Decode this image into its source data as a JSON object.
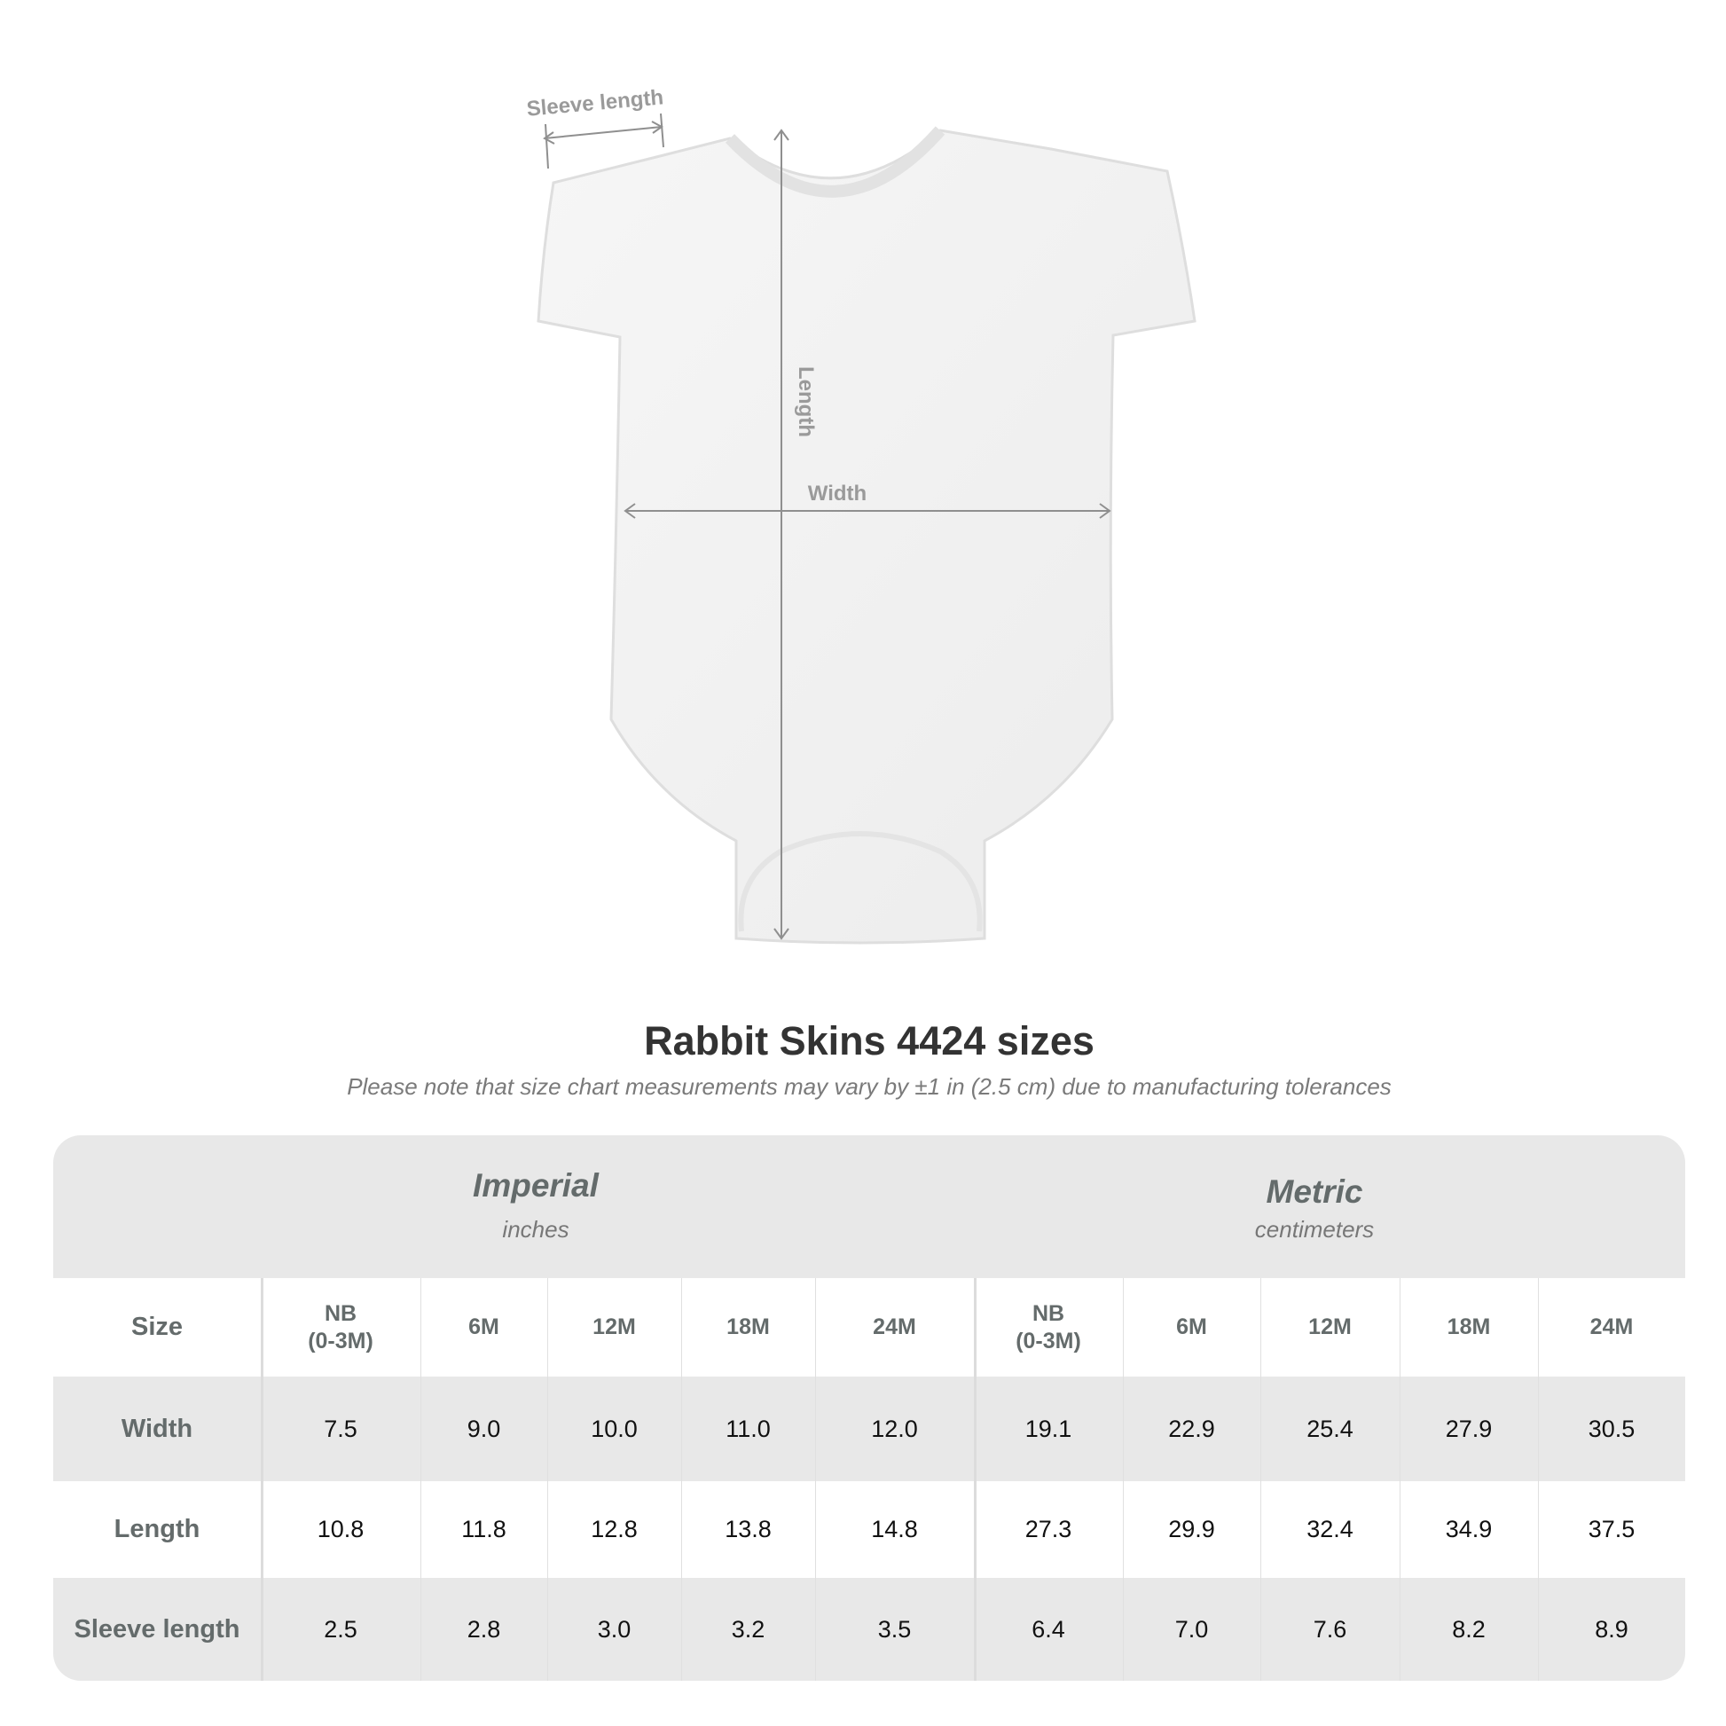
{
  "diagram": {
    "labels": {
      "sleeve": "Sleeve length",
      "length": "Length",
      "width": "Width"
    }
  },
  "title": "Rabbit Skins 4424 sizes",
  "subtitle": "Please note that size chart measurements may vary by ±1 in (2.5 cm) due to manufacturing tolerances",
  "table": {
    "imperial": {
      "title": "Imperial",
      "unit": "inches"
    },
    "metric": {
      "title": "Metric",
      "unit": "centimeters"
    },
    "size_label": "Size",
    "sizes": [
      "NB\n(0-3M)",
      "6M",
      "12M",
      "18M",
      "24M",
      "NB\n(0-3M)",
      "6M",
      "12M",
      "18M",
      "24M"
    ],
    "rows": [
      {
        "label": "Width",
        "values": [
          "7.5",
          "9.0",
          "10.0",
          "11.0",
          "12.0",
          "19.1",
          "22.9",
          "25.4",
          "27.9",
          "30.5"
        ]
      },
      {
        "label": "Length",
        "values": [
          "10.8",
          "11.8",
          "12.8",
          "13.8",
          "14.8",
          "27.3",
          "29.9",
          "32.4",
          "34.9",
          "37.5"
        ]
      },
      {
        "label": "Sleeve length",
        "values": [
          "2.5",
          "2.8",
          "3.0",
          "3.2",
          "3.5",
          "6.4",
          "7.0",
          "7.6",
          "8.2",
          "8.9"
        ]
      }
    ],
    "colors": {
      "band": "#e8e8e8",
      "header_text": "#646b6b"
    }
  }
}
